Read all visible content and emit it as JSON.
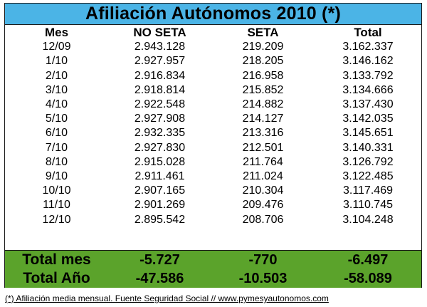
{
  "title": "Afiliación Autónomos 2010 (*)",
  "columns": [
    "Mes",
    "NO SETA",
    "SETA",
    "Total"
  ],
  "rows": [
    [
      "12/09",
      "2.943.128",
      "219.209",
      "3.162.337"
    ],
    [
      "1/10",
      "2.927.957",
      "218.205",
      "3.146.162"
    ],
    [
      "2/10",
      "2.916.834",
      "216.958",
      "3.133.792"
    ],
    [
      "3/10",
      "2.918.814",
      "215.852",
      "3.134.666"
    ],
    [
      "4/10",
      "2.922.548",
      "214.882",
      "3.137.430"
    ],
    [
      "5/10",
      "2.927.908",
      "214.127",
      "3.142.035"
    ],
    [
      "6/10",
      "2.932.335",
      "213.316",
      "3.145.651"
    ],
    [
      "7/10",
      "2.927.830",
      "212.501",
      "3.140.331"
    ],
    [
      "8/10",
      "2.915.028",
      "211.764",
      "3.126.792"
    ],
    [
      "9/10",
      "2.911.461",
      "211.024",
      "3.122.485"
    ],
    [
      "10/10",
      "2.907.165",
      "210.304",
      "3.117.469"
    ],
    [
      "11/10",
      "2.901.269",
      "209.476",
      "3.110.745"
    ],
    [
      "12/10",
      "2.895.542",
      "208.706",
      "3.104.248"
    ]
  ],
  "totals": [
    [
      "Total mes",
      "-5.727",
      "-770",
      "-6.497"
    ],
    [
      "Total Año",
      "-47.586",
      "-10.503",
      "-58.089"
    ]
  ],
  "footnote": "(*) Afiliación media mensual. Fuente Seguridad Social // www.pymesyautonomos.com",
  "colors": {
    "title_bg": "#4bb4e6",
    "totals_bg": "#5ba32b"
  }
}
